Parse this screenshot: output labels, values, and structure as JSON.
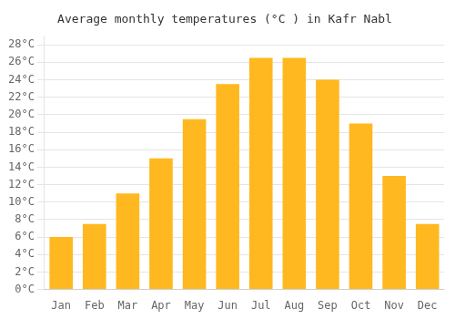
{
  "chart_data": {
    "type": "bar",
    "title": "Average monthly temperatures (°C ) in Kafr Nabl",
    "categories": [
      "Jan",
      "Feb",
      "Mar",
      "Apr",
      "May",
      "Jun",
      "Jul",
      "Aug",
      "Sep",
      "Oct",
      "Nov",
      "Dec"
    ],
    "values": [
      6.0,
      7.5,
      11.0,
      15.0,
      19.5,
      23.5,
      26.5,
      26.5,
      24.0,
      19.0,
      13.0,
      7.5
    ],
    "color": "#FFB820",
    "ylim": [
      0,
      29
    ],
    "yticks": [
      {
        "value": 0,
        "label": "0°C"
      },
      {
        "value": 2,
        "label": "2°C"
      },
      {
        "value": 4,
        "label": "4°C"
      },
      {
        "value": 6,
        "label": "6°C"
      },
      {
        "value": 8,
        "label": "8°C"
      },
      {
        "value": 10,
        "label": "10°C"
      },
      {
        "value": 12,
        "label": "12°C"
      },
      {
        "value": 14,
        "label": "14°C"
      },
      {
        "value": 16,
        "label": "16°C"
      },
      {
        "value": 18,
        "label": "18°C"
      },
      {
        "value": 20,
        "label": "20°C"
      },
      {
        "value": 22,
        "label": "22°C"
      },
      {
        "value": 24,
        "label": "24°C"
      },
      {
        "value": 26,
        "label": "26°C"
      },
      {
        "value": 28,
        "label": "28°C"
      }
    ],
    "grid": true
  }
}
